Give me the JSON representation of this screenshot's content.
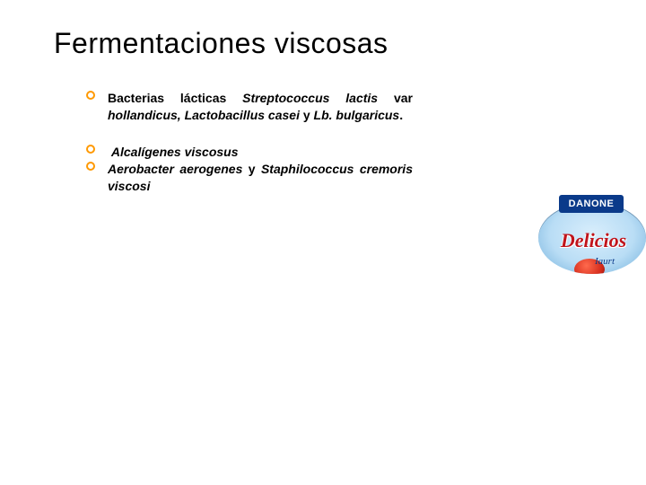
{
  "title": "Fermentaciones viscosas",
  "bullets": {
    "b1": {
      "lead": "Bacterias lácticas",
      "sp1": "Streptococcus lactis",
      "var": "var",
      "sp2": "hollandicus, Lactobacillus casei",
      "y": "y",
      "sp3": "Lb. bulgaricus",
      "dot": "."
    },
    "b2": {
      "sp": "Alcalígenes viscosus"
    },
    "b3": {
      "sp1": "Aerobacter aerogenes",
      "y": "y",
      "sp2": "Staphilococcus cremoris viscosi"
    }
  },
  "logo": {
    "brand": "DANONE",
    "product": "Delicios",
    "sub": "Iaurt"
  }
}
